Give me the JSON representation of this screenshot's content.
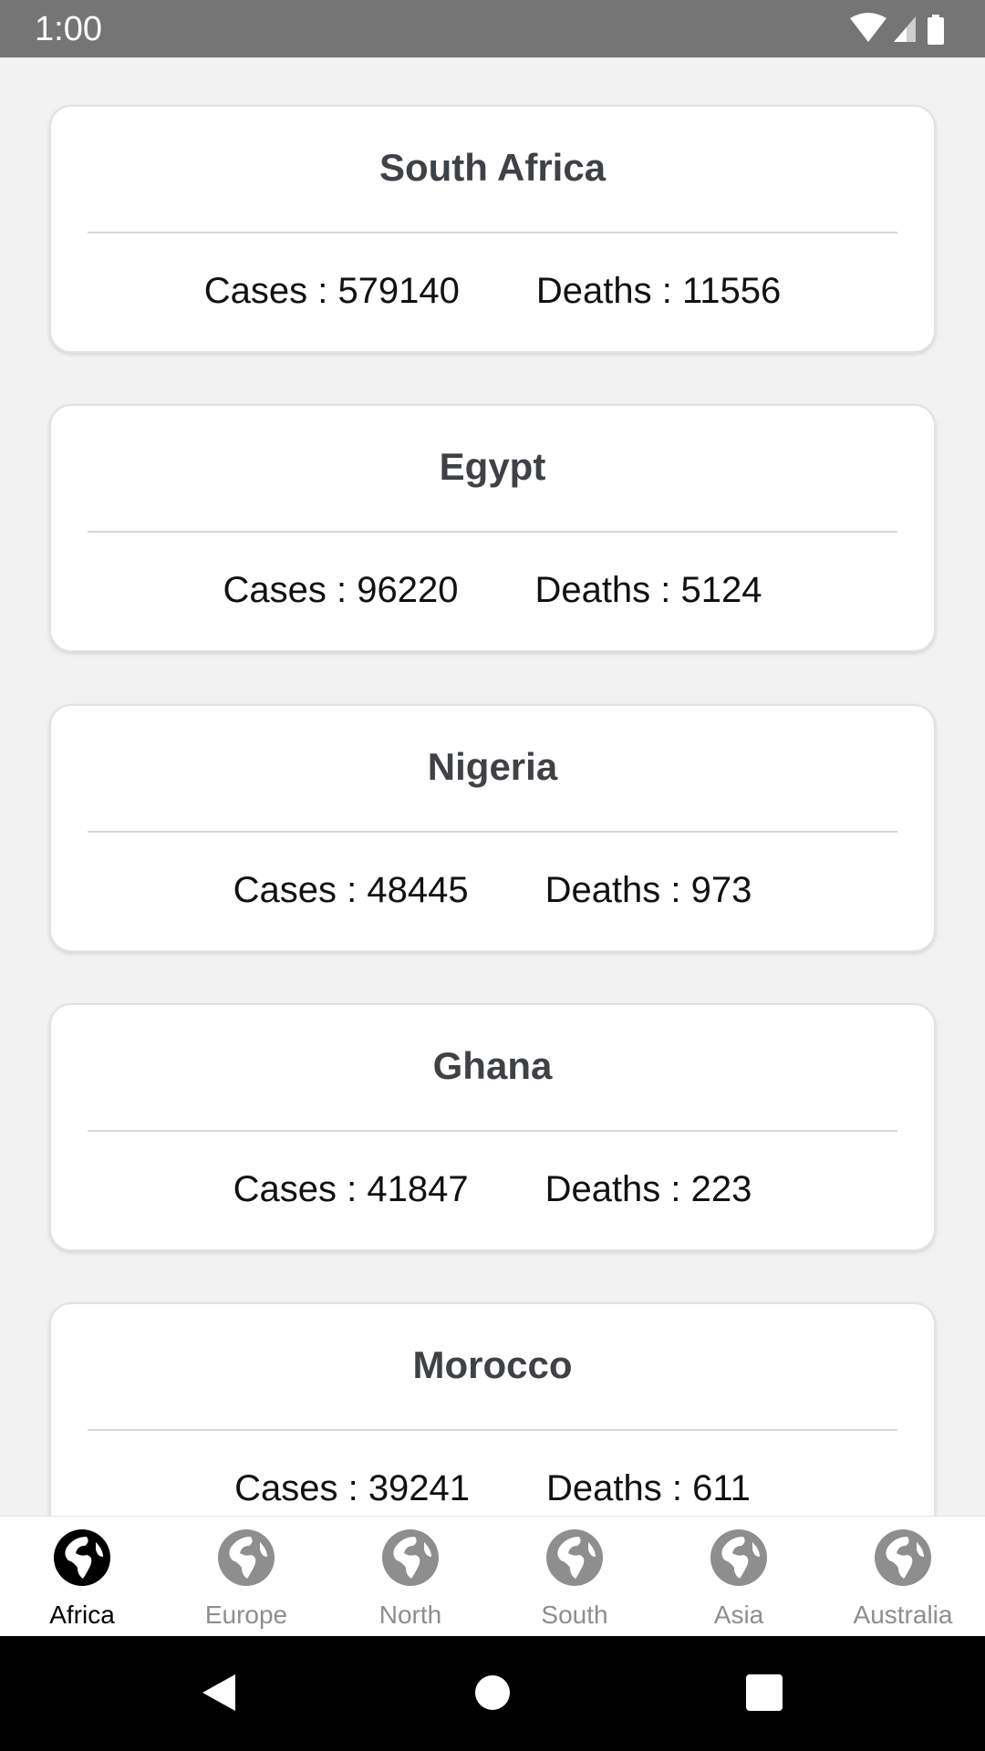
{
  "status_bar": {
    "time": "1:00"
  },
  "countries": [
    {
      "name": "South Africa",
      "cases_text": "Cases : 579140",
      "deaths_text": "Deaths : 11556"
    },
    {
      "name": "Egypt",
      "cases_text": "Cases : 96220",
      "deaths_text": "Deaths : 5124"
    },
    {
      "name": "Nigeria",
      "cases_text": "Cases : 48445",
      "deaths_text": "Deaths : 973"
    },
    {
      "name": "Ghana",
      "cases_text": "Cases : 41847",
      "deaths_text": "Deaths : 223"
    },
    {
      "name": "Morocco",
      "cases_text": "Cases : 39241",
      "deaths_text": "Deaths : 611"
    }
  ],
  "bottom_nav": {
    "items": [
      {
        "label": "Africa",
        "icon": "globe-icon",
        "active": true
      },
      {
        "label": "Europe",
        "icon": "globe-icon",
        "active": false
      },
      {
        "label": "North",
        "icon": "globe-icon",
        "active": false
      },
      {
        "label": "South",
        "icon": "globe-icon",
        "active": false
      },
      {
        "label": "Asia",
        "icon": "globe-icon",
        "active": false
      },
      {
        "label": "Australia",
        "icon": "globe-icon",
        "active": false
      }
    ],
    "active_color": "#000000",
    "inactive_color": "#8e8e8e"
  }
}
